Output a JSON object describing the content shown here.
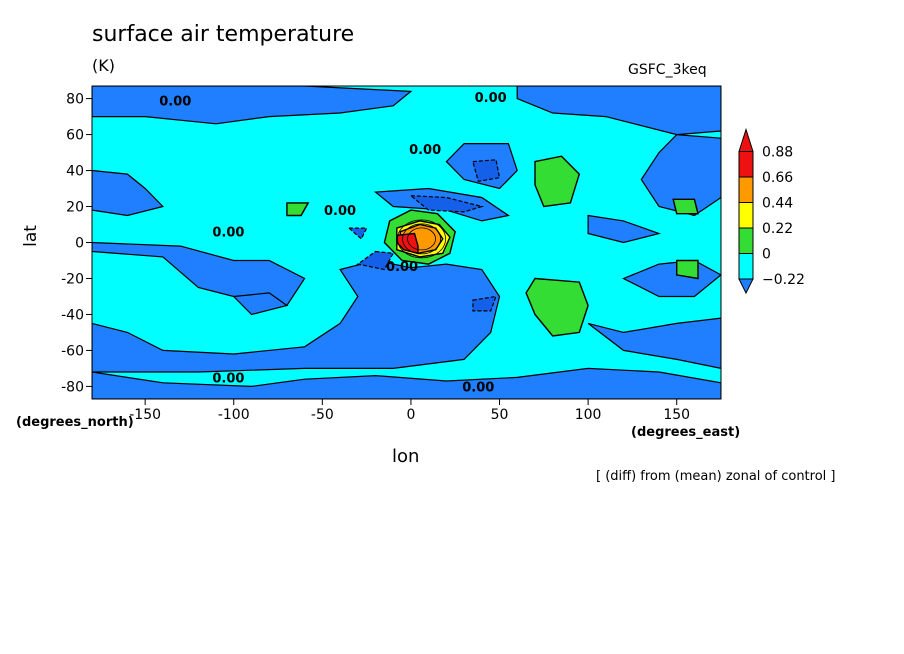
{
  "chart_data": {
    "type": "heatmap",
    "title": "surface air temperature",
    "units": "(K)",
    "run_label": "GSFC_3keq",
    "xlabel": "lon",
    "ylabel": "lat",
    "x_units_label": "(degrees_east)",
    "y_units_label": "(degrees_north)",
    "footnote": "[ (diff) from (mean) zonal of control ]",
    "xlim": [
      -180,
      175
    ],
    "ylim": [
      -87,
      87
    ],
    "xticks": [
      -150,
      -100,
      -50,
      0,
      50,
      100,
      150
    ],
    "yticks": [
      -80,
      -60,
      -40,
      -20,
      0,
      20,
      40,
      60,
      80
    ],
    "colorbar": {
      "levels": [
        -0.22,
        0,
        0.22,
        0.44,
        0.66,
        0.88
      ],
      "colors": [
        "#1f7fff",
        "#00ffff",
        "#33dd33",
        "#ffff00",
        "#ff9900",
        "#ee1111"
      ],
      "lower_color": "#1f7fff",
      "upper_color": "#ee1111"
    },
    "background_color": "#00ffff",
    "contour_labels": [
      {
        "text": "0.00",
        "x": -133,
        "y": 79
      },
      {
        "text": "0.00",
        "x": 45,
        "y": 81
      },
      {
        "text": "0.00",
        "x": 8,
        "y": 52
      },
      {
        "text": "0.00",
        "x": -40,
        "y": 18
      },
      {
        "text": "0.00",
        "x": -103,
        "y": 6
      },
      {
        "text": "0.00",
        "x": -5,
        "y": -13
      },
      {
        "text": "0.00",
        "x": -103,
        "y": -75
      },
      {
        "text": "0.00",
        "x": 38,
        "y": -80
      }
    ],
    "regions": [
      {
        "level": -0.22,
        "points": [
          [
            -180,
            87
          ],
          [
            -150,
            87
          ],
          [
            -120,
            87
          ],
          [
            -60,
            87
          ],
          [
            -20,
            85
          ],
          [
            0,
            84
          ],
          [
            -10,
            76
          ],
          [
            -40,
            72
          ],
          [
            -80,
            70
          ],
          [
            -110,
            66
          ],
          [
            -150,
            70
          ],
          [
            -180,
            70
          ]
        ]
      },
      {
        "level": -0.22,
        "points": [
          [
            60,
            87
          ],
          [
            175,
            87
          ],
          [
            175,
            62
          ],
          [
            150,
            60
          ],
          [
            110,
            70
          ],
          [
            80,
            72
          ],
          [
            60,
            80
          ]
        ]
      },
      {
        "level": -0.22,
        "points": [
          [
            -180,
            40
          ],
          [
            -160,
            38
          ],
          [
            -150,
            30
          ],
          [
            -140,
            20
          ],
          [
            -160,
            15
          ],
          [
            -180,
            18
          ]
        ]
      },
      {
        "level": -0.22,
        "points": [
          [
            -180,
            -5
          ],
          [
            -140,
            -8
          ],
          [
            -120,
            -25
          ],
          [
            -100,
            -30
          ],
          [
            -70,
            -35
          ],
          [
            -60,
            -20
          ],
          [
            -80,
            -10
          ],
          [
            -100,
            -10
          ],
          [
            -130,
            -2
          ],
          [
            -180,
            0
          ]
        ]
      },
      {
        "level": -0.22,
        "points": [
          [
            -180,
            -45
          ],
          [
            -160,
            -50
          ],
          [
            -140,
            -60
          ],
          [
            -100,
            -62
          ],
          [
            -60,
            -58
          ],
          [
            -40,
            -45
          ],
          [
            -30,
            -30
          ],
          [
            -40,
            -15
          ],
          [
            -20,
            -10
          ],
          [
            0,
            -14
          ],
          [
            20,
            -12
          ],
          [
            40,
            -15
          ],
          [
            50,
            -30
          ],
          [
            45,
            -50
          ],
          [
            30,
            -65
          ],
          [
            -10,
            -70
          ],
          [
            -60,
            -70
          ],
          [
            -120,
            -72
          ],
          [
            -180,
            -72
          ]
        ]
      },
      {
        "level": -0.22,
        "points": [
          [
            -180,
            -87
          ],
          [
            -180,
            -72
          ],
          [
            -140,
            -78
          ],
          [
            -90,
            -80
          ],
          [
            -60,
            -76
          ],
          [
            -20,
            -74
          ],
          [
            20,
            -77
          ],
          [
            60,
            -75
          ],
          [
            100,
            -70
          ],
          [
            140,
            -72
          ],
          [
            175,
            -78
          ],
          [
            175,
            -87
          ]
        ]
      },
      {
        "level": -0.22,
        "points": [
          [
            100,
            -45
          ],
          [
            120,
            -50
          ],
          [
            150,
            -45
          ],
          [
            175,
            -42
          ],
          [
            175,
            -70
          ],
          [
            150,
            -65
          ],
          [
            120,
            -60
          ]
        ]
      },
      {
        "level": -0.22,
        "points": [
          [
            120,
            -20
          ],
          [
            140,
            -12
          ],
          [
            160,
            -10
          ],
          [
            175,
            -18
          ],
          [
            160,
            -30
          ],
          [
            140,
            -30
          ]
        ]
      },
      {
        "level": -0.22,
        "points": [
          [
            150,
            60
          ],
          [
            175,
            58
          ],
          [
            175,
            25
          ],
          [
            160,
            15
          ],
          [
            140,
            20
          ],
          [
            130,
            35
          ],
          [
            140,
            50
          ]
        ]
      },
      {
        "level": -0.22,
        "points": [
          [
            100,
            15
          ],
          [
            120,
            12
          ],
          [
            140,
            5
          ],
          [
            120,
            0
          ],
          [
            100,
            5
          ]
        ]
      },
      {
        "level": -0.22,
        "points": [
          [
            30,
            55
          ],
          [
            55,
            55
          ],
          [
            60,
            40
          ],
          [
            50,
            30
          ],
          [
            30,
            35
          ],
          [
            20,
            45
          ]
        ]
      },
      {
        "level": -0.22,
        "points": [
          [
            -20,
            28
          ],
          [
            10,
            30
          ],
          [
            40,
            25
          ],
          [
            55,
            15
          ],
          [
            40,
            12
          ],
          [
            20,
            18
          ],
          [
            -10,
            20
          ]
        ]
      },
      {
        "level": -0.22,
        "points": [
          [
            -100,
            -30
          ],
          [
            -80,
            -28
          ],
          [
            -70,
            -35
          ],
          [
            -90,
            -40
          ]
        ]
      },
      {
        "level": -0.44,
        "points": [
          [
            35,
            45
          ],
          [
            48,
            46
          ],
          [
            50,
            36
          ],
          [
            38,
            34
          ]
        ]
      },
      {
        "level": -0.44,
        "points": [
          [
            0,
            26
          ],
          [
            20,
            25
          ],
          [
            40,
            20
          ],
          [
            30,
            17
          ],
          [
            10,
            18
          ]
        ]
      },
      {
        "level": -0.44,
        "points": [
          [
            -20,
            -5
          ],
          [
            -10,
            -6
          ],
          [
            -15,
            -15
          ],
          [
            -30,
            -12
          ]
        ]
      },
      {
        "level": -0.44,
        "points": [
          [
            -35,
            8
          ],
          [
            -25,
            8
          ],
          [
            -28,
            2
          ]
        ]
      },
      {
        "level": -0.44,
        "points": [
          [
            35,
            -32
          ],
          [
            48,
            -30
          ],
          [
            45,
            -38
          ],
          [
            35,
            -38
          ]
        ]
      },
      {
        "level": 0.22,
        "points": [
          [
            70,
            45
          ],
          [
            85,
            48
          ],
          [
            95,
            38
          ],
          [
            90,
            22
          ],
          [
            75,
            20
          ],
          [
            70,
            32
          ]
        ]
      },
      {
        "level": 0.22,
        "points": [
          [
            70,
            -20
          ],
          [
            95,
            -22
          ],
          [
            100,
            -35
          ],
          [
            95,
            -50
          ],
          [
            80,
            -52
          ],
          [
            70,
            -40
          ],
          [
            65,
            -28
          ]
        ]
      },
      {
        "level": 0.22,
        "points": [
          [
            148,
            24
          ],
          [
            160,
            24
          ],
          [
            162,
            16
          ],
          [
            150,
            16
          ]
        ]
      },
      {
        "level": 0.22,
        "points": [
          [
            150,
            -10
          ],
          [
            162,
            -10
          ],
          [
            162,
            -20
          ],
          [
            150,
            -18
          ]
        ]
      },
      {
        "level": 0.22,
        "points": [
          [
            -70,
            22
          ],
          [
            -58,
            22
          ],
          [
            -62,
            15
          ],
          [
            -70,
            15
          ]
        ]
      },
      {
        "level": 0.22,
        "points": [
          [
            -12,
            12
          ],
          [
            0,
            18
          ],
          [
            15,
            16
          ],
          [
            25,
            6
          ],
          [
            22,
            -6
          ],
          [
            10,
            -12
          ],
          [
            -5,
            -10
          ],
          [
            -15,
            0
          ]
        ]
      },
      {
        "level": 0.44,
        "points": [
          [
            -8,
            8
          ],
          [
            5,
            12
          ],
          [
            16,
            10
          ],
          [
            22,
            3
          ],
          [
            18,
            -6
          ],
          [
            5,
            -8
          ],
          [
            -8,
            -4
          ]
        ]
      },
      {
        "level": 0.66,
        "points": [
          [
            -6,
            6
          ],
          [
            5,
            10
          ],
          [
            14,
            8
          ],
          [
            18,
            2
          ],
          [
            14,
            -4
          ],
          [
            4,
            -6
          ],
          [
            -6,
            -2
          ]
        ]
      },
      {
        "level": 0.88,
        "points": [
          [
            -8,
            4
          ],
          [
            2,
            5
          ],
          [
            4,
            -2
          ],
          [
            4,
            -6
          ],
          [
            -4,
            -4
          ],
          [
            -8,
            0
          ]
        ]
      }
    ]
  }
}
